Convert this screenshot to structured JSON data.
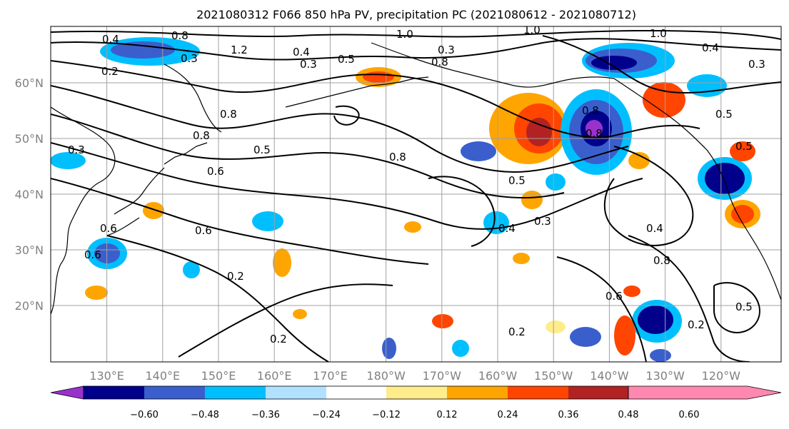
{
  "title": "2021080312 F066 850 hPa PV, precipitation PC (2021080612 - 2021080712)",
  "axes": {
    "x_ticks": [
      "130°E",
      "140°E",
      "150°E",
      "160°E",
      "170°E",
      "180°W",
      "170°W",
      "160°W",
      "150°W",
      "140°W",
      "130°W",
      "120°W"
    ],
    "y_ticks": [
      "60°N",
      "50°N",
      "40°N",
      "30°N",
      "20°N"
    ]
  },
  "colorbar": {
    "colors": [
      "#9932cc",
      "#00008b",
      "#3a5fcd",
      "#00bfff",
      "#b0e2ff",
      "#ffffff",
      "#ffec8b",
      "#ffa500",
      "#ff4500",
      "#b22222",
      "#ff88b0"
    ],
    "ticks": [
      "−0.60",
      "−0.48",
      "−0.36",
      "−0.24",
      "−0.12",
      "0.12",
      "0.24",
      "0.36",
      "0.48",
      "0.60"
    ]
  },
  "contour_labels": [
    "0.4",
    "0.8",
    "0.3",
    "1.2",
    "0.3",
    "0.2",
    "1.0",
    "0.4",
    "0.5",
    "0.3",
    "0.8",
    "0.8",
    "1.0",
    "1.0",
    "0.3",
    "0.4",
    "0.5",
    "0.8",
    "0.3",
    "0.8",
    "0.5",
    "0.6",
    "0.8",
    "0.5",
    "0.6",
    "0.8",
    "0.5",
    "0.4",
    "0.3",
    "0.6",
    "0.6",
    "0.2",
    "0.4",
    "0.8",
    "0.6",
    "0.2",
    "0.2",
    "0.5",
    "0.2"
  ]
}
